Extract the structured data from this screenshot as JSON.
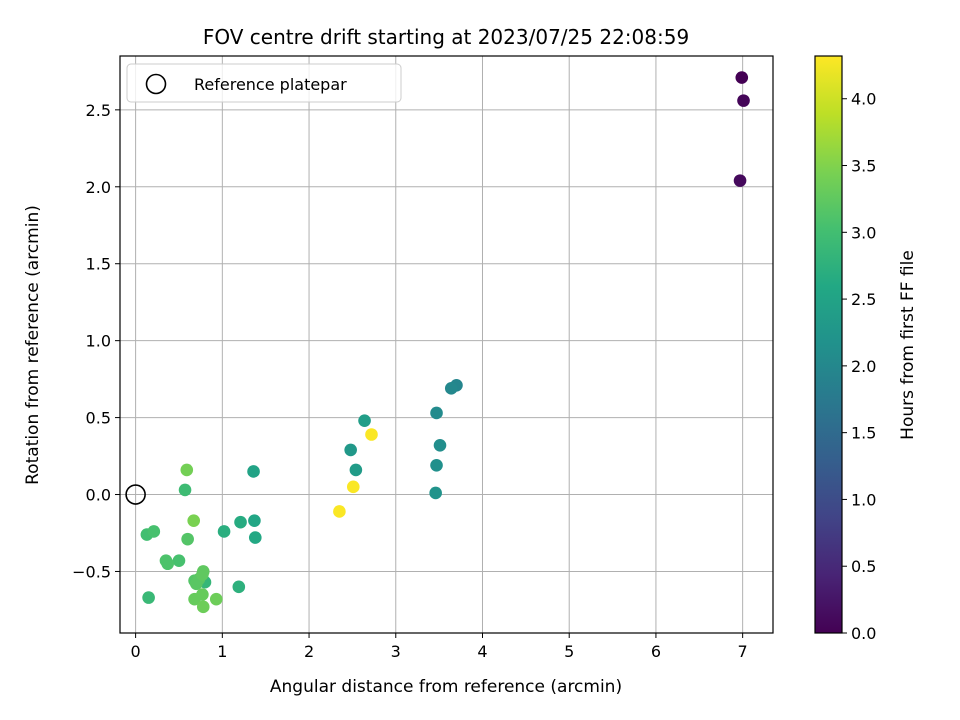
{
  "chart_data": {
    "type": "scatter",
    "title": "FOV centre drift starting at 2023/07/25 22:08:59",
    "xlabel": "Angular distance from reference (arcmin)",
    "ylabel": "Rotation from reference (arcmin)",
    "xlim": [
      -0.18,
      7.35
    ],
    "ylim": [
      -0.9,
      2.85
    ],
    "xticks": [
      0,
      1,
      2,
      3,
      4,
      5,
      6,
      7
    ],
    "yticks": [
      -0.5,
      0.0,
      0.5,
      1.0,
      1.5,
      2.0,
      2.5
    ],
    "xtick_labels": [
      "0",
      "1",
      "2",
      "3",
      "4",
      "5",
      "6",
      "7"
    ],
    "ytick_labels": [
      "−0.5",
      "0.0",
      "0.5",
      "1.0",
      "1.5",
      "2.0",
      "2.5"
    ],
    "grid": true,
    "legend": {
      "position": "top-left",
      "entries": [
        {
          "label": "Reference platepar",
          "marker": "open-circle"
        }
      ]
    },
    "reference_point": {
      "x": 0,
      "y": 0
    },
    "colorbar": {
      "label": "Hours from first FF file",
      "colormap": "viridis",
      "range": [
        0,
        4.32
      ],
      "ticks": [
        0.0,
        0.5,
        1.0,
        1.5,
        2.0,
        2.5,
        3.0,
        3.5,
        4.0
      ],
      "tick_labels": [
        "0.0",
        "0.5",
        "1.0",
        "1.5",
        "2.0",
        "2.5",
        "3.0",
        "3.5",
        "4.0"
      ]
    },
    "points": [
      {
        "x": 6.99,
        "y": 2.71,
        "hours": 0.0
      },
      {
        "x": 7.01,
        "y": 2.56,
        "hours": 0.05
      },
      {
        "x": 6.97,
        "y": 2.04,
        "hours": 0.1
      },
      {
        "x": 3.7,
        "y": 0.71,
        "hours": 1.95
      },
      {
        "x": 3.64,
        "y": 0.69,
        "hours": 2.0
      },
      {
        "x": 3.47,
        "y": 0.53,
        "hours": 2.05
      },
      {
        "x": 3.51,
        "y": 0.32,
        "hours": 2.1
      },
      {
        "x": 3.47,
        "y": 0.19,
        "hours": 2.15
      },
      {
        "x": 3.46,
        "y": 0.01,
        "hours": 2.2
      },
      {
        "x": 2.48,
        "y": 0.29,
        "hours": 2.3
      },
      {
        "x": 2.54,
        "y": 0.16,
        "hours": 2.35
      },
      {
        "x": 2.64,
        "y": 0.48,
        "hours": 2.4
      },
      {
        "x": 1.36,
        "y": 0.15,
        "hours": 2.5
      },
      {
        "x": 1.37,
        "y": -0.17,
        "hours": 2.55
      },
      {
        "x": 1.38,
        "y": -0.28,
        "hours": 2.6
      },
      {
        "x": 1.21,
        "y": -0.18,
        "hours": 2.65
      },
      {
        "x": 1.02,
        "y": -0.24,
        "hours": 2.7
      },
      {
        "x": 1.19,
        "y": -0.6,
        "hours": 2.75
      },
      {
        "x": 0.8,
        "y": -0.57,
        "hours": 2.85
      },
      {
        "x": 0.15,
        "y": -0.67,
        "hours": 2.9
      },
      {
        "x": 0.57,
        "y": 0.03,
        "hours": 2.95
      },
      {
        "x": 0.13,
        "y": -0.26,
        "hours": 3.0
      },
      {
        "x": 0.21,
        "y": -0.24,
        "hours": 3.05
      },
      {
        "x": 0.5,
        "y": -0.43,
        "hours": 3.05
      },
      {
        "x": 0.35,
        "y": -0.43,
        "hours": 3.1
      },
      {
        "x": 0.37,
        "y": -0.45,
        "hours": 3.1
      },
      {
        "x": 0.6,
        "y": -0.29,
        "hours": 3.15
      },
      {
        "x": 0.68,
        "y": -0.56,
        "hours": 3.15
      },
      {
        "x": 0.7,
        "y": -0.58,
        "hours": 3.2
      },
      {
        "x": 0.73,
        "y": -0.55,
        "hours": 3.2
      },
      {
        "x": 0.77,
        "y": -0.52,
        "hours": 3.25
      },
      {
        "x": 0.78,
        "y": -0.5,
        "hours": 3.25
      },
      {
        "x": 0.68,
        "y": -0.68,
        "hours": 3.3
      },
      {
        "x": 0.77,
        "y": -0.65,
        "hours": 3.3
      },
      {
        "x": 0.78,
        "y": -0.73,
        "hours": 3.35
      },
      {
        "x": 0.93,
        "y": -0.68,
        "hours": 3.35
      },
      {
        "x": 0.59,
        "y": 0.16,
        "hours": 3.4
      },
      {
        "x": 0.67,
        "y": -0.17,
        "hours": 3.45
      },
      {
        "x": 2.35,
        "y": -0.11,
        "hours": 4.3
      },
      {
        "x": 2.51,
        "y": 0.05,
        "hours": 4.3
      },
      {
        "x": 2.72,
        "y": 0.39,
        "hours": 4.3
      }
    ]
  }
}
